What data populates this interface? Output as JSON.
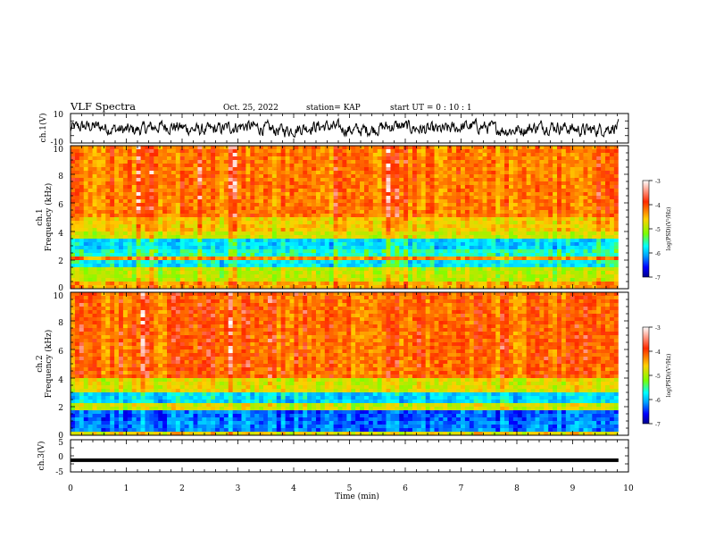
{
  "header": {
    "title": "VLF Spectra",
    "date": "Oct. 25, 2022",
    "station": "station= KAP",
    "start": "start  UT =   0 : 10 : 1"
  },
  "panels": {
    "ch1_wave": {
      "ylabel": "ch.1(V)",
      "ticks": [
        "10",
        "-10"
      ]
    },
    "ch1_spec": {
      "ylabel": "ch.1",
      "ylabel2": "Frequency (kHz)",
      "ticks": [
        "0",
        "2",
        "4",
        "6",
        "8",
        "10"
      ]
    },
    "ch2_spec": {
      "ylabel": "ch.2",
      "ylabel2": "Frequency (kHz)",
      "ticks": [
        "0",
        "2",
        "4",
        "6",
        "8",
        "10"
      ]
    },
    "ch3_wave": {
      "ylabel": "ch.3(V)",
      "ticks": [
        "5",
        "0",
        "-5"
      ]
    }
  },
  "colorbar": {
    "label": "log(PSD)(V²/Hz)",
    "ticks": [
      "-3",
      "-4",
      "-5",
      "-6",
      "-7"
    ],
    "colors": [
      "#ffffff",
      "#ff2a00",
      "#ffd000",
      "#7cff00",
      "#00ffff",
      "#00a0ff",
      "#0000ff",
      "#00008b"
    ]
  },
  "x_axis": {
    "label": "Time (min)",
    "ticks": [
      "0",
      "1",
      "2",
      "3",
      "4",
      "5",
      "6",
      "7",
      "8",
      "9",
      "10"
    ]
  },
  "chart_data": [
    {
      "type": "line",
      "title": "VLF Spectra",
      "ylabel": "ch.1(V)",
      "xlim": [
        0,
        10
      ],
      "ylim": [
        -10,
        10
      ],
      "x_span": [
        0,
        9.82
      ],
      "series": [
        {
          "values_summary": "noisy signal oscillating around 0 V, mostly between -5 and 5"
        }
      ]
    },
    {
      "type": "heatmap",
      "ylabel": "Frequency (kHz)",
      "xlim": [
        0,
        10
      ],
      "ylim": [
        0,
        10
      ],
      "x_span": [
        0,
        9.82
      ],
      "bands": [
        {
          "from": 0.0,
          "to": 0.6,
          "level": -4.0
        },
        {
          "from": 0.6,
          "to": 1.5,
          "level": -4.6
        },
        {
          "from": 1.5,
          "to": 2.1,
          "level": -5.5
        },
        {
          "from": 2.1,
          "to": 2.3,
          "level": -3.9
        },
        {
          "from": 2.3,
          "to": 2.7,
          "level": -5.3
        },
        {
          "from": 2.7,
          "to": 3.6,
          "level": -5.6
        },
        {
          "from": 3.6,
          "to": 3.9,
          "level": -4.5
        },
        {
          "from": 3.9,
          "to": 4.9,
          "level": -4.2
        },
        {
          "from": 4.9,
          "to": 10.0,
          "level": -3.8
        }
      ],
      "zlim": [
        -7,
        -3
      ]
    },
    {
      "type": "heatmap",
      "ylabel": "Frequency (kHz)",
      "xlim": [
        0,
        10
      ],
      "ylim": [
        0,
        10
      ],
      "x_span": [
        0,
        9.82
      ],
      "bands": [
        {
          "from": 0.0,
          "to": 0.3,
          "level": -4.3
        },
        {
          "from": 0.3,
          "to": 0.9,
          "level": -6.0
        },
        {
          "from": 0.9,
          "to": 1.1,
          "level": -4.8
        },
        {
          "from": 1.1,
          "to": 1.8,
          "level": -6.1
        },
        {
          "from": 1.8,
          "to": 2.3,
          "level": -4.5
        },
        {
          "from": 2.3,
          "to": 3.0,
          "level": -5.6
        },
        {
          "from": 3.0,
          "to": 4.0,
          "level": -4.4
        },
        {
          "from": 4.0,
          "to": 10.0,
          "level": -3.7
        }
      ],
      "zlim": [
        -7,
        -3
      ]
    },
    {
      "type": "line",
      "ylabel": "ch.3(V)",
      "xlim": [
        0,
        10
      ],
      "ylim": [
        -5,
        5
      ],
      "x_span": [
        0,
        9.82
      ],
      "series": [
        {
          "values_summary": "flat thick signal near -1.3 V"
        }
      ]
    }
  ]
}
